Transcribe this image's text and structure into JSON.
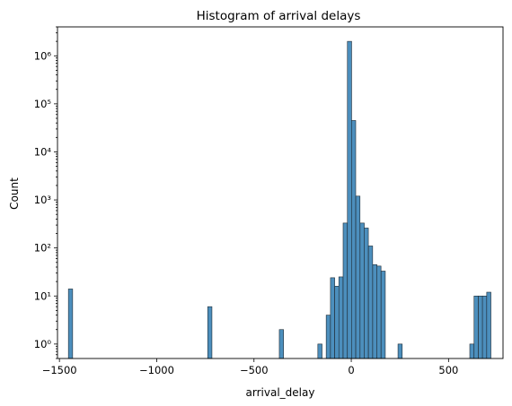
{
  "chart_data": {
    "type": "bar",
    "title": "Histogram of arrival delays",
    "xlabel": "arrival_delay",
    "ylabel": "Count",
    "yscale": "log",
    "xlim": [
      -1510,
      780
    ],
    "ylim": [
      0.5,
      4000000
    ],
    "bar_color": "#4c8fbd",
    "edge_color": "#1f2a33",
    "grid": false,
    "bin_width": 21.7,
    "xticks": [
      -1500,
      -1000,
      -500,
      0,
      500
    ],
    "xtick_labels": [
      "−1500",
      "−1000",
      "−500",
      "0",
      "500"
    ],
    "yticks": [
      1,
      10,
      100,
      1000,
      10000,
      100000,
      1000000
    ],
    "ytick_labels": [
      "10⁰",
      "10¹",
      "10²",
      "10³",
      "10⁴",
      "10⁵",
      "10⁶"
    ],
    "bins": [
      {
        "x": -1443,
        "count": 14
      },
      {
        "x": -727,
        "count": 6
      },
      {
        "x": -359,
        "count": 2
      },
      {
        "x": -161,
        "count": 1
      },
      {
        "x": -118,
        "count": 4
      },
      {
        "x": -96,
        "count": 24
      },
      {
        "x": -74,
        "count": 16
      },
      {
        "x": -53,
        "count": 25
      },
      {
        "x": -31,
        "count": 330
      },
      {
        "x": -9,
        "count": 2000000
      },
      {
        "x": 12,
        "count": 45000
      },
      {
        "x": 34,
        "count": 1200
      },
      {
        "x": 56,
        "count": 330
      },
      {
        "x": 77,
        "count": 260
      },
      {
        "x": 99,
        "count": 110
      },
      {
        "x": 121,
        "count": 45
      },
      {
        "x": 142,
        "count": 42
      },
      {
        "x": 164,
        "count": 33
      },
      {
        "x": 251,
        "count": 1
      },
      {
        "x": 620,
        "count": 1
      },
      {
        "x": 642,
        "count": 10
      },
      {
        "x": 664,
        "count": 10
      },
      {
        "x": 685,
        "count": 10
      },
      {
        "x": 707,
        "count": 12
      }
    ]
  }
}
